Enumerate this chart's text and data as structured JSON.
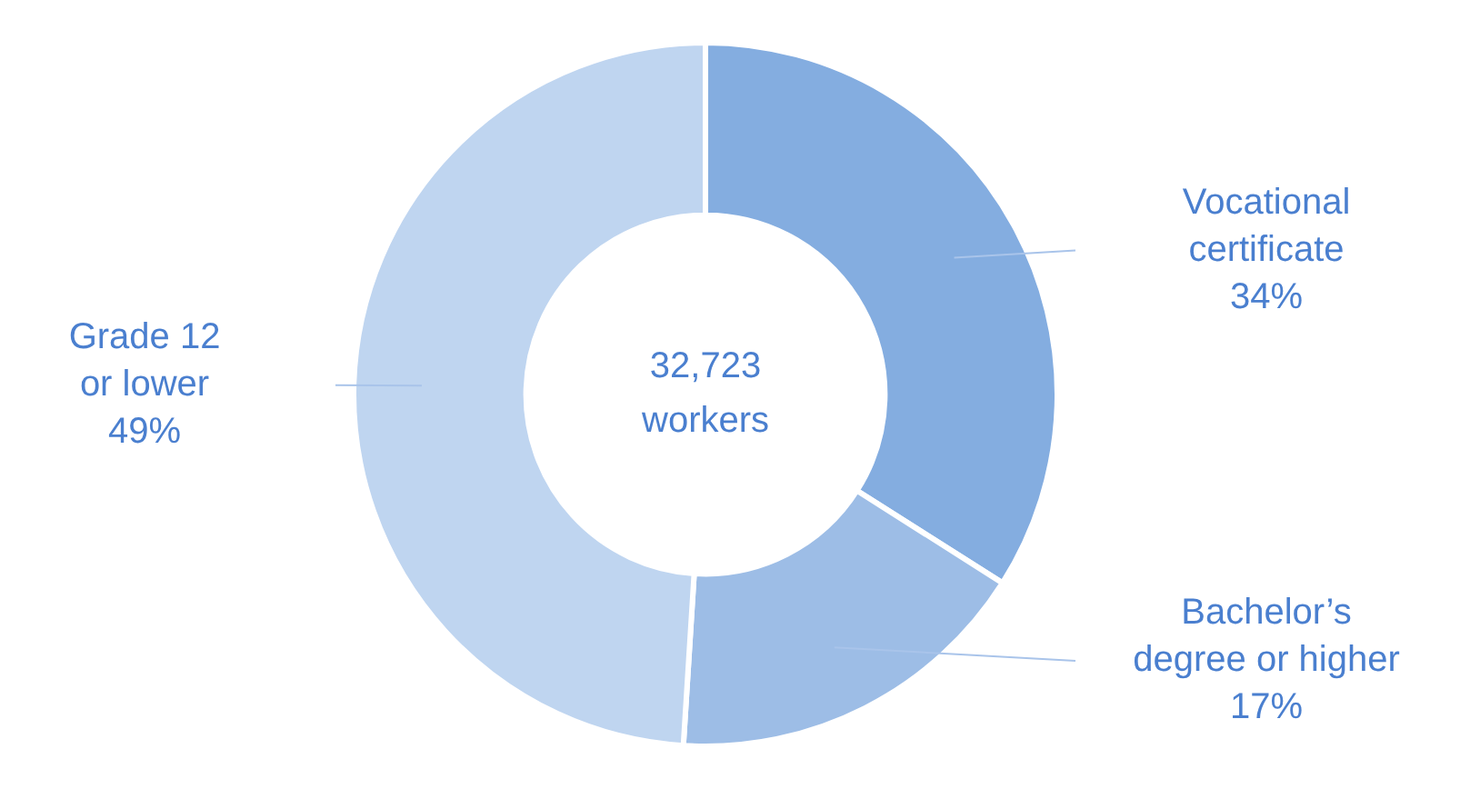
{
  "chart_data": {
    "type": "donut",
    "categories": [
      "Vocational certificate",
      "Bachelor’s degree or higher",
      "Grade 12 or lower"
    ],
    "values": [
      34,
      17,
      49
    ],
    "colors": [
      "#84ade0",
      "#9dbde6",
      "#bfd5f0"
    ],
    "value_labels": [
      "34%",
      "17%",
      "49%"
    ],
    "annotations": [
      "32,723 workers"
    ]
  }
}
